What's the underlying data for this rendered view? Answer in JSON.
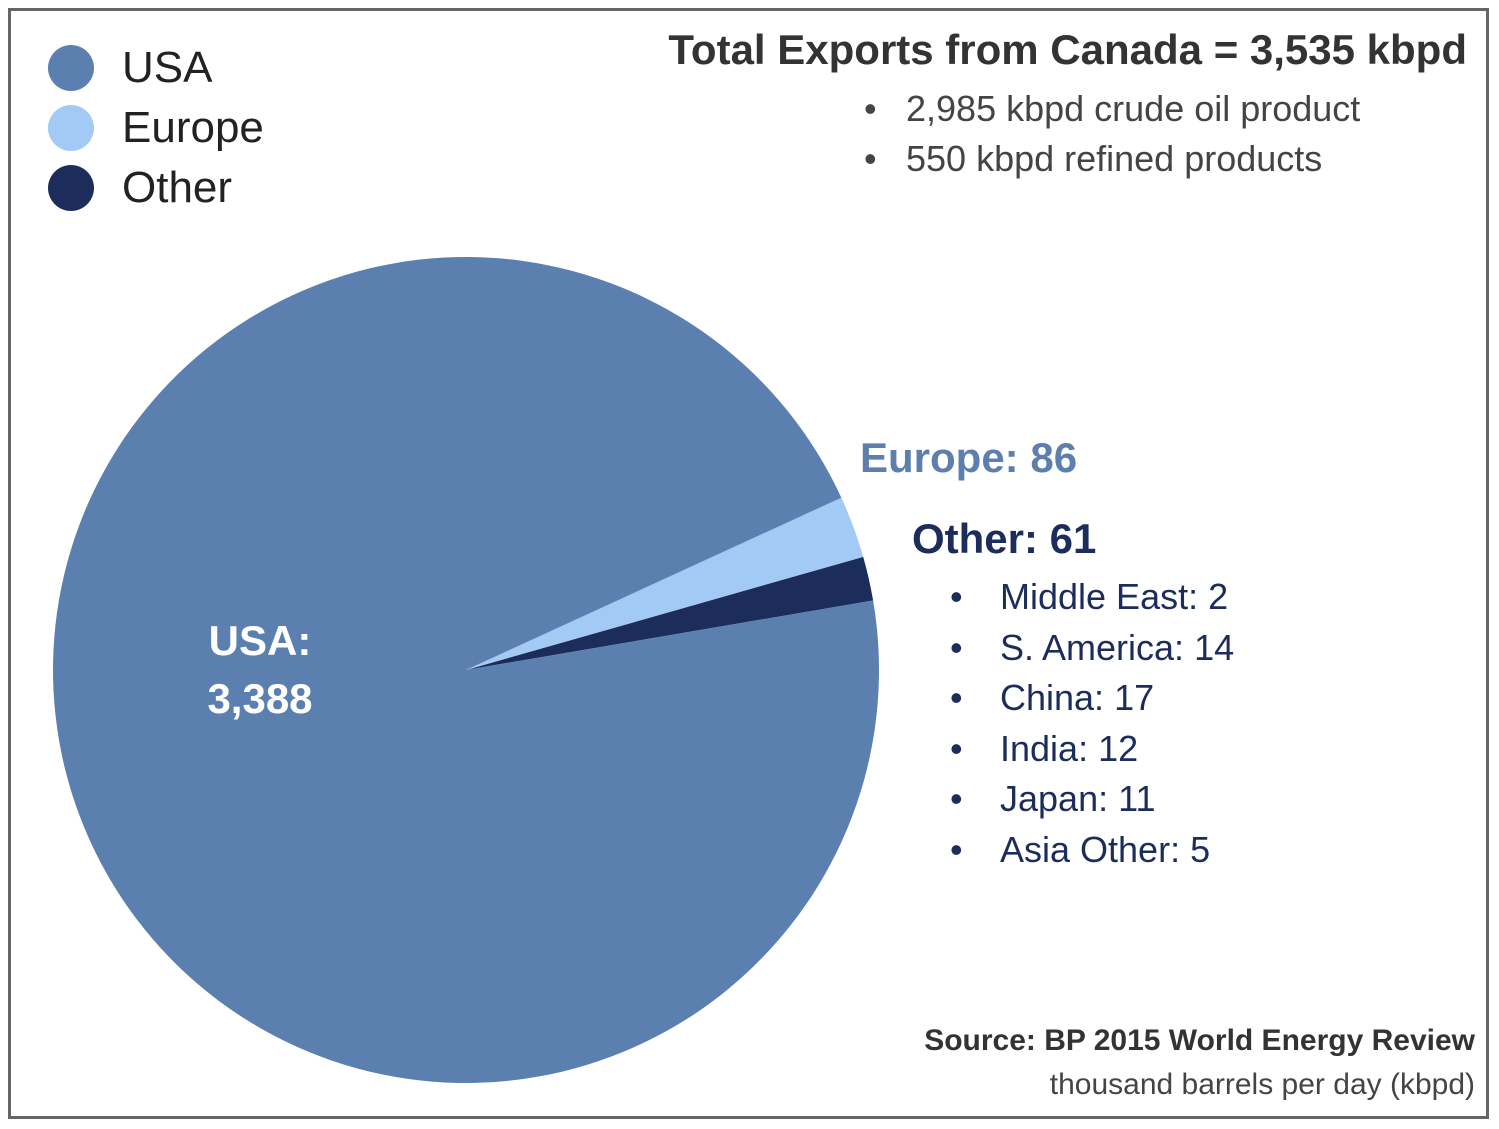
{
  "title": "Total Exports from Canada = 3,535 kbpd",
  "subtitle_items": [
    "2,985 kbpd crude oil product",
    "550 kbpd refined products"
  ],
  "legend": [
    {
      "label": "USA",
      "color": "#5b80b0"
    },
    {
      "label": "Europe",
      "color": "#a3c9f5"
    },
    {
      "label": "Other",
      "color": "#1c2d5c"
    }
  ],
  "labels": {
    "usa_line1": "USA:",
    "usa_line2": "3,388",
    "europe": "Europe: 86",
    "other": "Other: 61"
  },
  "other_breakdown": [
    "Middle East: 2",
    "S. America: 14",
    "China: 17",
    "India: 12",
    "Japan: 11",
    "Asia Other: 5"
  ],
  "source": "Source: BP 2015 World Energy Review",
  "unit_note": "thousand barrels per day (kbpd)",
  "chart_data": {
    "type": "pie",
    "title": "Total Exports from Canada = 3,535 kbpd",
    "categories": [
      "USA",
      "Europe",
      "Other"
    ],
    "values": [
      3388,
      86,
      61
    ],
    "colors": [
      "#5b80b0",
      "#a3c9f5",
      "#1c2d5c"
    ],
    "legend_position": "top-left",
    "breakdown": {
      "Other": [
        {
          "name": "Middle East",
          "value": 2
        },
        {
          "name": "S. America",
          "value": 14
        },
        {
          "name": "China",
          "value": 17
        },
        {
          "name": "India",
          "value": 12
        },
        {
          "name": "Japan",
          "value": 11
        },
        {
          "name": "Asia Other",
          "value": 5
        }
      ]
    }
  }
}
